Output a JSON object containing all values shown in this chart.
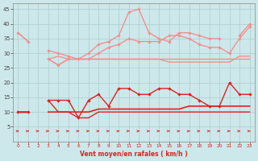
{
  "x": [
    0,
    1,
    2,
    3,
    4,
    5,
    6,
    7,
    8,
    9,
    10,
    11,
    12,
    13,
    14,
    15,
    16,
    17,
    18,
    19,
    20,
    21,
    22,
    23
  ],
  "line1_y": [
    37,
    34,
    null,
    28,
    29,
    28,
    28,
    28,
    28,
    28,
    28,
    28,
    28,
    28,
    28,
    28,
    28,
    28,
    28,
    28,
    28,
    28,
    28,
    28
  ],
  "line2_y": [
    37,
    34,
    null,
    31,
    30,
    29,
    28,
    30,
    33,
    34,
    36,
    44,
    45,
    37,
    35,
    34,
    37,
    37,
    36,
    35,
    35,
    null,
    36,
    40
  ],
  "line3_y": [
    null,
    null,
    null,
    28,
    26,
    28,
    28,
    28,
    28,
    28,
    28,
    28,
    28,
    28,
    28,
    27,
    27,
    27,
    27,
    27,
    27,
    27,
    29,
    29
  ],
  "line4_y": [
    null,
    null,
    null,
    28,
    26,
    28,
    28,
    28,
    30,
    32,
    33,
    35,
    34,
    34,
    34,
    36,
    36,
    35,
    33,
    32,
    32,
    30,
    35,
    39
  ],
  "line5_y": [
    10,
    10,
    null,
    14,
    14,
    14,
    8,
    14,
    16,
    12,
    18,
    18,
    16,
    16,
    18,
    18,
    16,
    16,
    14,
    12,
    12,
    20,
    16,
    16
  ],
  "line6_y": [
    10,
    10,
    null,
    10,
    10,
    10,
    10,
    10,
    11,
    11,
    11,
    11,
    11,
    11,
    11,
    11,
    11,
    12,
    12,
    12,
    12,
    12,
    12,
    12
  ],
  "line7_y": [
    10,
    10,
    null,
    14,
    10,
    10,
    8,
    8,
    10,
    10,
    10,
    10,
    10,
    10,
    10,
    10,
    10,
    10,
    10,
    10,
    10,
    10,
    10,
    10
  ],
  "bg_color": "#cde8ea",
  "grid_color": "#aacccc",
  "color_light": "#f09090",
  "color_red": "#dd2222",
  "xlabel": "Vent moyen/en rafales ( km/h )",
  "ylim": [
    0,
    47
  ],
  "xlim": [
    -0.5,
    23.5
  ],
  "yticks": [
    5,
    10,
    15,
    20,
    25,
    30,
    35,
    40,
    45
  ],
  "xticks": [
    0,
    1,
    2,
    3,
    4,
    5,
    6,
    7,
    8,
    9,
    10,
    11,
    12,
    13,
    14,
    15,
    16,
    17,
    18,
    19,
    20,
    21,
    22,
    23
  ]
}
